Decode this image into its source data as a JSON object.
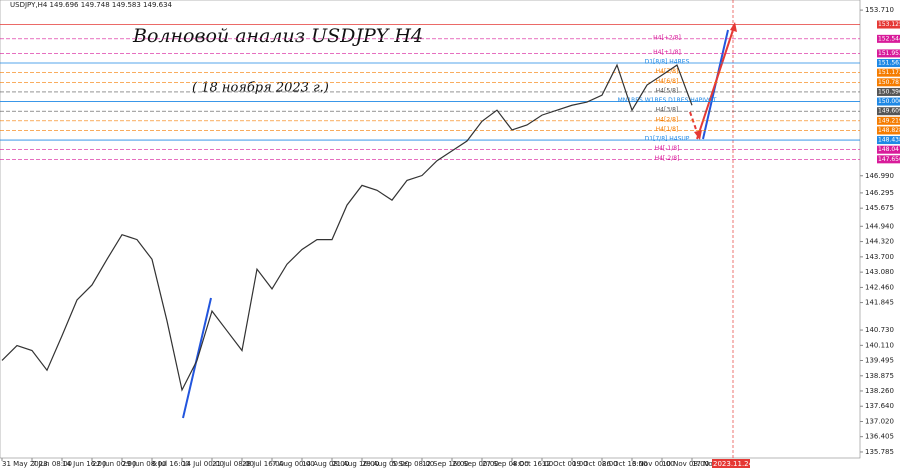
{
  "header": "USDJPY,H4  149.696 149.748 149.583 149.634",
  "chart_data": {
    "type": "line",
    "title": "Волновой анализ USDJPY H4",
    "subtitle": "( 18 ноября 2023 г.)",
    "categories": [
      "31 May 2023",
      null,
      "7 Jun 08:00",
      null,
      "14 Jun 16:00",
      null,
      "22 Jun 00:00",
      null,
      "29 Jun 08:00",
      null,
      "6 Jul 16:00",
      null,
      "14 Jul 00:00",
      null,
      "21 Jul 08:00",
      null,
      "28 Jul 16:00",
      null,
      "7 Aug 00:00",
      null,
      "14 Aug 08:00",
      null,
      "21 Aug 16:00",
      null,
      "29 Aug 00:00",
      null,
      "5 Sep 08:00",
      null,
      "12 Sep 16:00",
      null,
      "20 Sep 00:00",
      null,
      "27 Sep 08:00",
      null,
      "4 Oct 16:00",
      null,
      "12 Oct 00:00",
      null,
      "19 Oct 08:00",
      null,
      "26 Oct 16:00",
      null,
      "3 Nov 00:00",
      null,
      "10 Nov 08:00",
      null,
      "17 Nov 16:00"
    ],
    "series": [
      {
        "name": "USDJPY",
        "color": "#333333",
        "values": [
          139.5,
          140.1,
          139.9,
          139.1,
          140.5,
          141.95,
          142.56,
          143.6,
          144.6,
          144.4,
          143.6,
          141.1,
          138.3,
          139.5,
          141.5,
          140.7,
          139.9,
          143.2,
          142.4,
          143.4,
          144.0,
          144.4,
          144.4,
          145.8,
          146.6,
          146.4,
          146.0,
          146.8,
          147.0,
          147.6,
          148.0,
          148.4,
          149.2,
          149.65,
          148.85,
          149.05,
          149.45,
          149.65,
          149.85,
          149.98,
          150.26,
          151.48,
          149.65,
          150.67,
          151.07,
          151.48,
          149.85
        ]
      }
    ],
    "future_label": "2023.11.24 20:00",
    "ylim": [
      135.54,
      154.12
    ],
    "yticks": [
      {
        "value": 153.71,
        "label": "153.710"
      },
      {
        "value": 146.99,
        "label": "146.990"
      },
      {
        "value": 146.295,
        "label": "146.295"
      },
      {
        "value": 145.675,
        "label": "145.675"
      },
      {
        "value": 144.94,
        "label": "144.940"
      },
      {
        "value": 144.32,
        "label": "144.320"
      },
      {
        "value": 143.7,
        "label": "143.700"
      },
      {
        "value": 143.08,
        "label": "143.080"
      },
      {
        "value": 142.46,
        "label": "142.460"
      },
      {
        "value": 141.845,
        "label": "141.845"
      },
      {
        "value": 140.73,
        "label": "140.730"
      },
      {
        "value": 140.11,
        "label": "140.110"
      },
      {
        "value": 139.495,
        "label": "139.495"
      },
      {
        "value": 138.875,
        "label": "138.875"
      },
      {
        "value": 138.26,
        "label": "138.260"
      },
      {
        "value": 137.64,
        "label": "137.640"
      },
      {
        "value": 137.02,
        "label": "137.020"
      },
      {
        "value": 136.405,
        "label": "136.405"
      },
      {
        "value": 135.785,
        "label": "135.785"
      }
    ],
    "grid": false,
    "levels": [
      {
        "value": 153.125,
        "price_label": "153.125",
        "color": "#e53935"
      },
      {
        "name": "H4[+2/8]",
        "value": 152.544,
        "price_label": "152.544",
        "color": "#d81b9a"
      },
      {
        "name": "H4[+1/8]",
        "value": 151.953,
        "price_label": "151.953",
        "color": "#d81b9a"
      },
      {
        "name": "D1[8/8] H4RES",
        "value": 151.563,
        "price_label": "151.563",
        "color": "#1e88e5"
      },
      {
        "name": "H4[7/8]",
        "value": 151.172,
        "price_label": "151.172",
        "color": "#f57c00"
      },
      {
        "name": "H4[6/8]",
        "value": 150.781,
        "price_label": "150.781",
        "color": "#f57c00"
      },
      {
        "name": "H4[5/8]",
        "value": 150.39,
        "price_label": "150.390",
        "color": "#555555"
      },
      {
        "name": "MN1RES W1RES D1RES H4PIVOT",
        "value": 150.0,
        "price_label": "150.000",
        "color": "#1e88e5"
      },
      {
        "name": "H4[3/8]",
        "value": 149.609,
        "price_label": "149.609",
        "color": "#555555"
      },
      {
        "name": "H4[2/8]",
        "value": 149.219,
        "price_label": "149.219",
        "color": "#f57c00"
      },
      {
        "name": "H4[1/8]",
        "value": 148.828,
        "price_label": "148.828",
        "color": "#f57c00"
      },
      {
        "name": "D1[7/8] H4SUP",
        "value": 148.438,
        "price_label": "148.438",
        "color": "#1e88e5"
      },
      {
        "name": "H4[-1/8]",
        "value": 148.047,
        "price_label": "148.047",
        "color": "#d81b9a"
      },
      {
        "name": "H4[-2/8]",
        "value": 147.656,
        "price_label": "147.656",
        "color": "#d81b9a"
      }
    ]
  }
}
